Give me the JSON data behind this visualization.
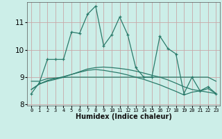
{
  "xlabel": "Humidex (Indice chaleur)",
  "x_values": [
    0,
    1,
    2,
    3,
    4,
    5,
    6,
    7,
    8,
    9,
    10,
    11,
    12,
    13,
    14,
    15,
    16,
    17,
    18,
    19,
    20,
    21,
    22,
    23
  ],
  "line1": [
    8.4,
    8.8,
    9.65,
    9.65,
    9.65,
    10.65,
    10.6,
    11.3,
    11.6,
    10.15,
    10.55,
    11.2,
    10.55,
    9.35,
    9.0,
    9.0,
    10.5,
    10.05,
    9.85,
    8.4,
    9.0,
    8.5,
    8.65,
    8.4
  ],
  "line2_flat": [
    8.85,
    8.85,
    8.95,
    8.97,
    8.99,
    9.0,
    9.0,
    9.0,
    9.0,
    9.0,
    9.0,
    9.0,
    9.0,
    9.0,
    9.0,
    9.0,
    9.0,
    9.0,
    9.0,
    9.0,
    9.0,
    9.0,
    9.0,
    8.85
  ],
  "line3_rise": [
    8.55,
    8.75,
    8.85,
    8.92,
    9.0,
    9.1,
    9.2,
    9.3,
    9.35,
    9.37,
    9.35,
    9.32,
    9.28,
    9.22,
    9.15,
    9.07,
    9.0,
    8.9,
    8.78,
    8.65,
    8.55,
    8.5,
    8.45,
    8.4
  ],
  "line4_drop": [
    8.55,
    8.75,
    8.88,
    8.95,
    9.02,
    9.1,
    9.18,
    9.25,
    9.28,
    9.25,
    9.2,
    9.15,
    9.08,
    9.0,
    8.92,
    8.82,
    8.72,
    8.6,
    8.48,
    8.35,
    8.45,
    8.5,
    8.58,
    8.4
  ],
  "line_color": "#2a7a6a",
  "bg_color": "#cceee8",
  "grid_major_color": "#c8a8a8",
  "grid_minor_color": "#ddd0d0",
  "ylim": [
    7.95,
    11.75
  ],
  "yticks": [
    8,
    9,
    10,
    11
  ],
  "xlim": [
    -0.5,
    23.5
  ]
}
